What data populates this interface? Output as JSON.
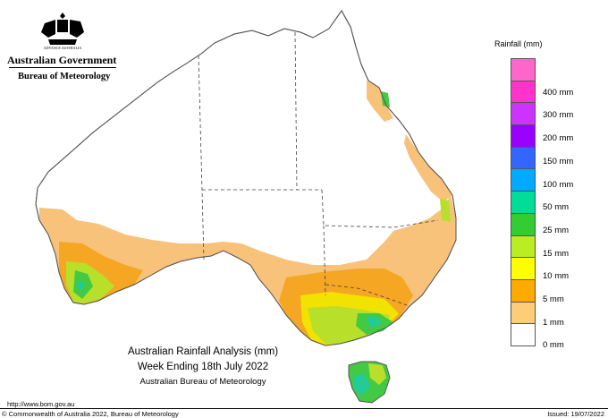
{
  "header": {
    "org_name": "Australian Government",
    "agency_name": "Bureau of Meteorology"
  },
  "legend": {
    "title": "Rainfall (mm)",
    "items": [
      {
        "label": "",
        "color": "#ff66cc"
      },
      {
        "label": "400 mm",
        "color": "#ff33cc"
      },
      {
        "label": "300 mm",
        "color": "#cc33ff"
      },
      {
        "label": "200 mm",
        "color": "#9900ff"
      },
      {
        "label": "150 mm",
        "color": "#3366ff"
      },
      {
        "label": "100 mm",
        "color": "#00aaff"
      },
      {
        "label": "50 mm",
        "color": "#00dd99"
      },
      {
        "label": "25 mm",
        "color": "#33cc33"
      },
      {
        "label": "15 mm",
        "color": "#bbee22"
      },
      {
        "label": "10 mm",
        "color": "#ffff00"
      },
      {
        "label": "5 mm",
        "color": "#ffaa00"
      },
      {
        "label": "1 mm",
        "color": "#ffcc77"
      },
      {
        "label": "0 mm",
        "color": "#ffffff"
      }
    ]
  },
  "caption": {
    "line1": "Australian Rainfall Analysis (mm)",
    "line2": "Week Ending 18th July 2022",
    "line3": "Australian Bureau of Meteorology"
  },
  "footer": {
    "url": "http://www.bom.gov.au",
    "copyright": "© Commonwealth of Australia 2022, Bureau of Meteorology",
    "issued": "Issued: 19/07/2022"
  },
  "colors": {
    "light_orange": "#f9c27a",
    "orange": "#f5a623",
    "yellow": "#f2e200",
    "lime": "#b8e02a",
    "green": "#44c944",
    "teal": "#22cc99"
  }
}
